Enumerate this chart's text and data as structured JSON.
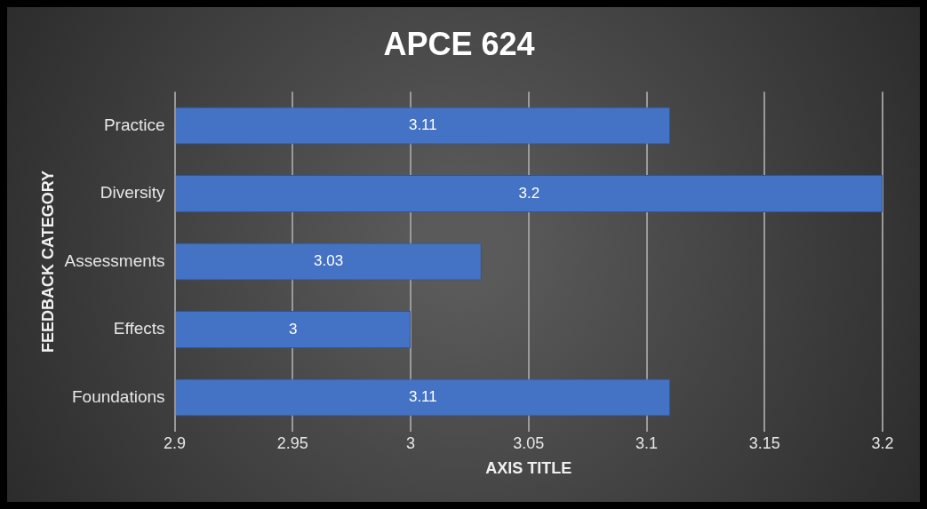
{
  "chart_data": {
    "type": "bar",
    "orientation": "horizontal",
    "title": "APCE 624",
    "xlabel": "AXIS TITLE",
    "ylabel": "FEEDBACK CATEGORY",
    "categories": [
      "Practice",
      "Diversity",
      "Assessments",
      "Effects",
      "Foundations"
    ],
    "values": [
      3.11,
      3.2,
      3.03,
      3,
      3.11
    ],
    "color": "#4472c4",
    "xlim": [
      2.9,
      3.2
    ],
    "xticks": [
      2.9,
      2.95,
      3,
      3.05,
      3.1,
      3.15,
      3.2
    ],
    "grid": "x",
    "data_labels": true
  }
}
